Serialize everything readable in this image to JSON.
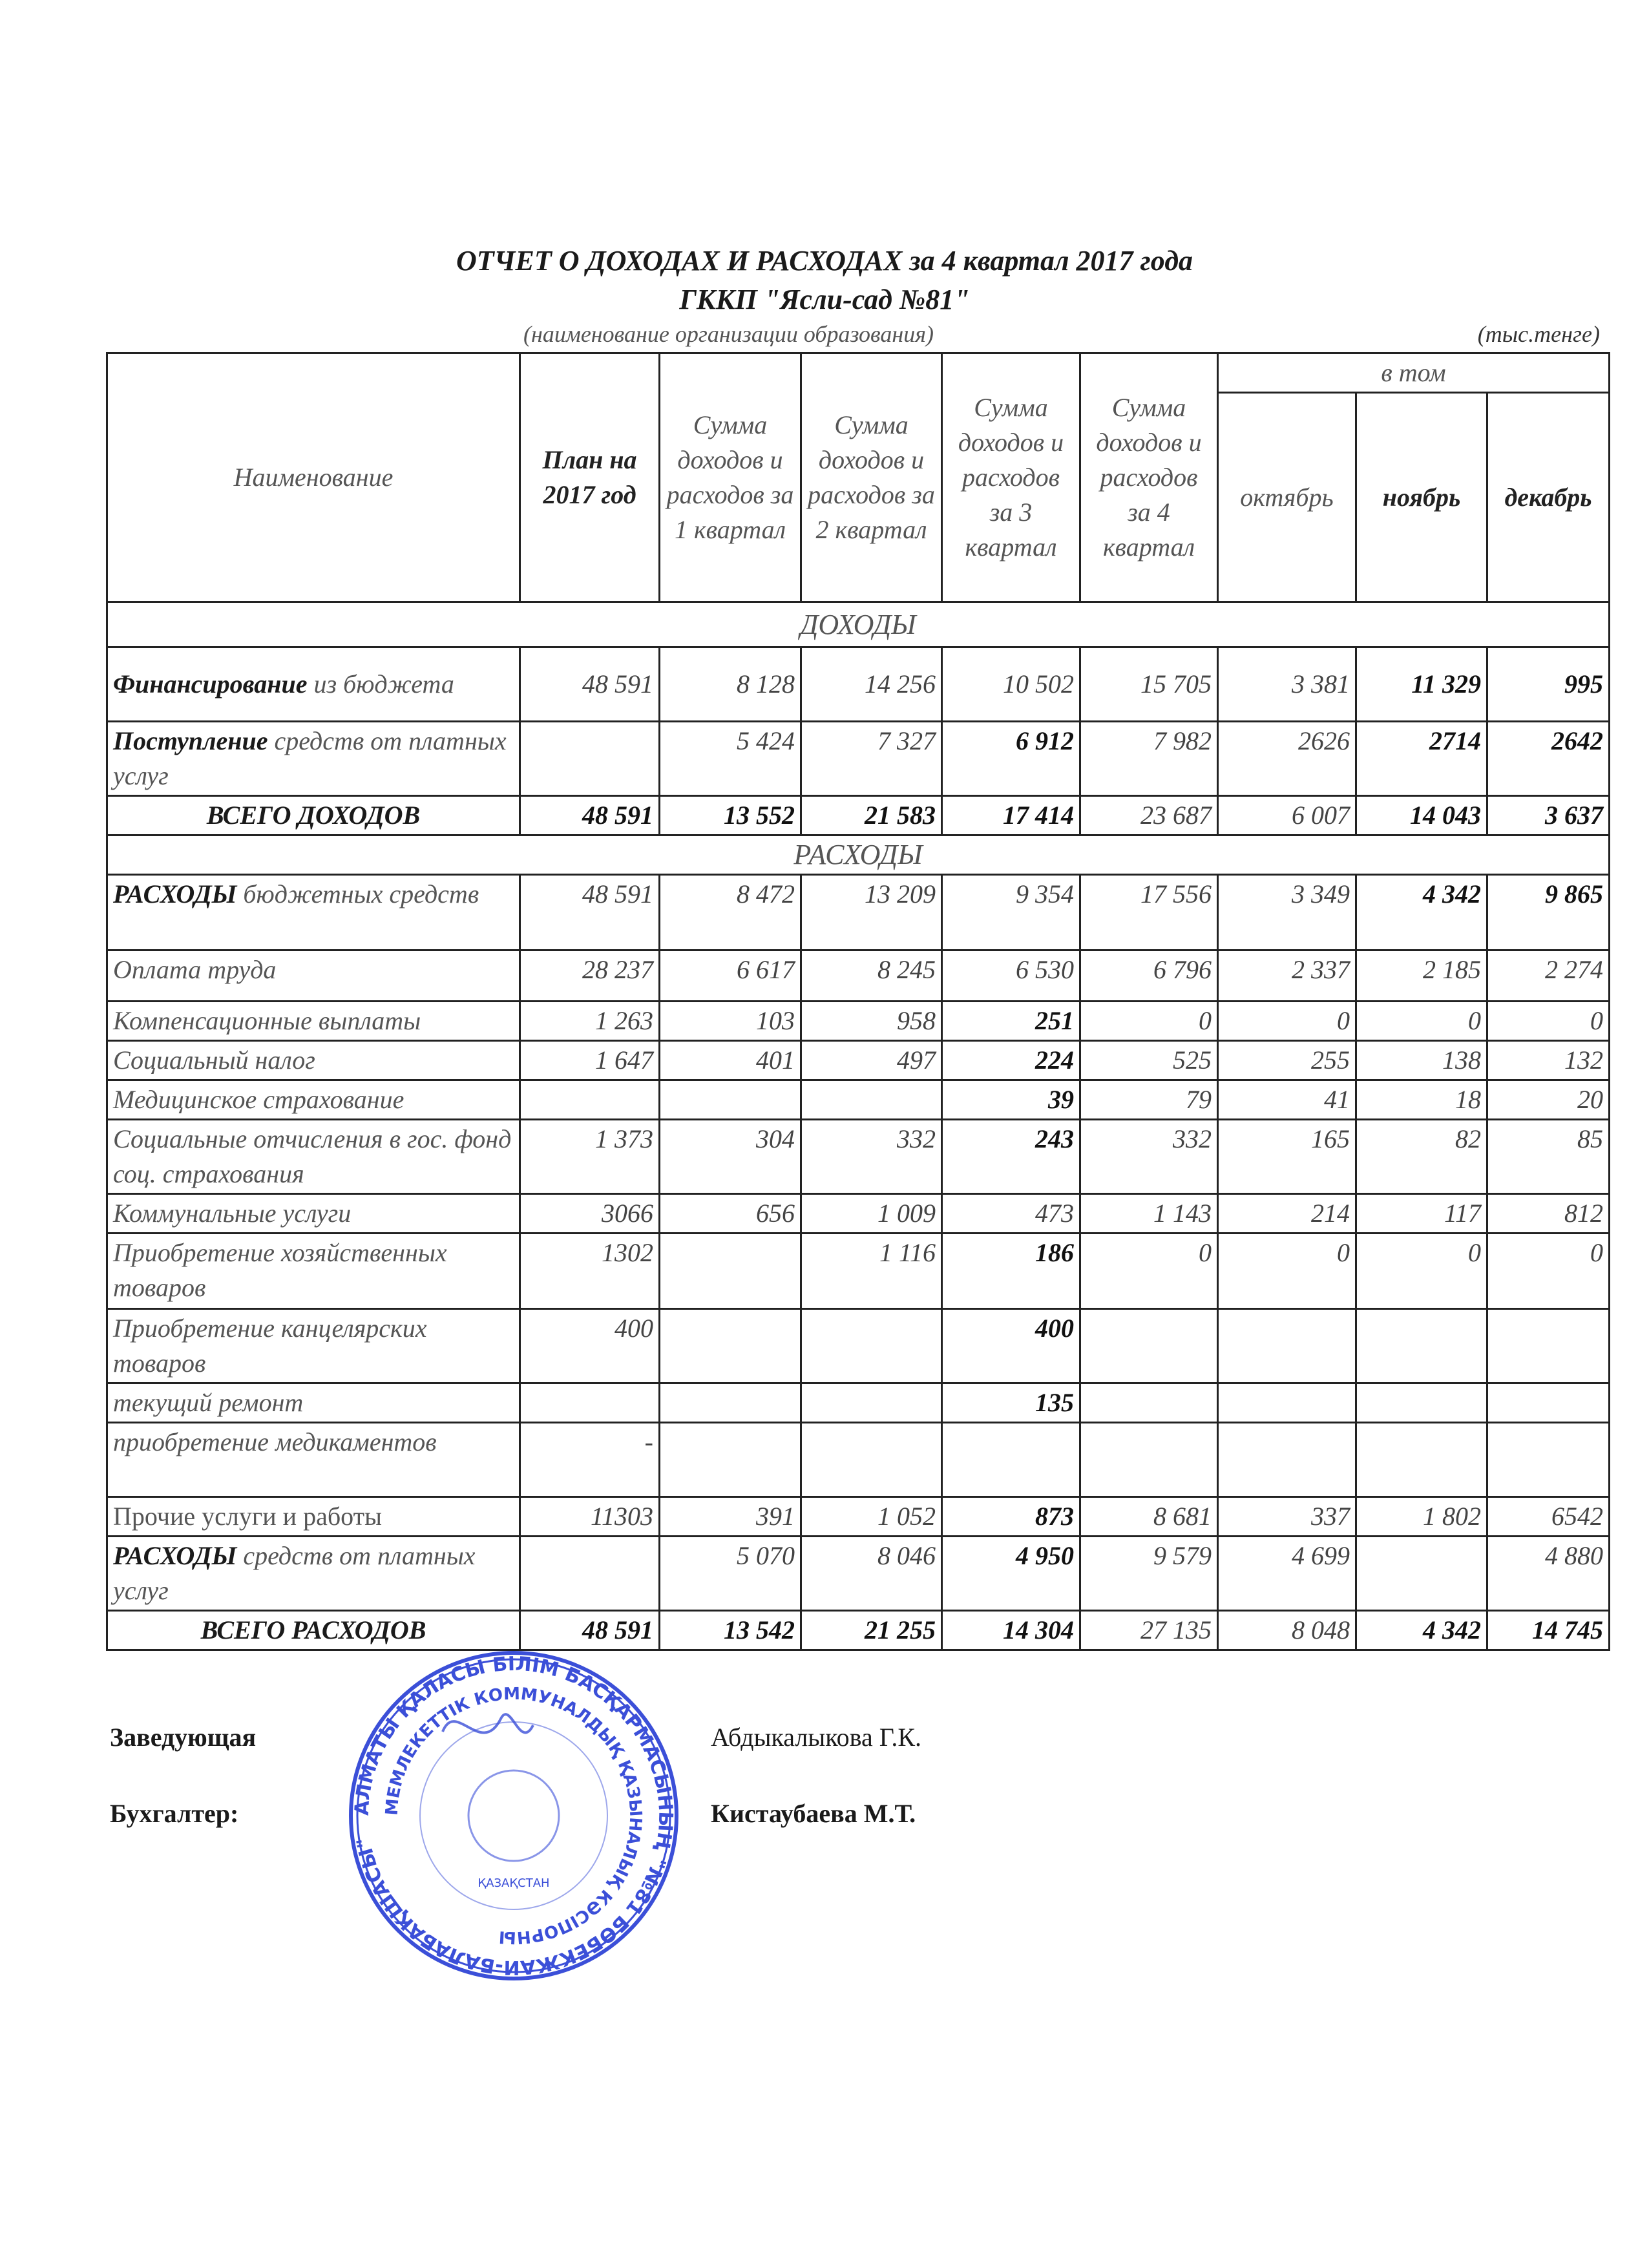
{
  "header": {
    "title": "ОТЧЕТ О ДОХОДАХ И РАСХОДАХ за 4 квартал 2017 года",
    "organization": "ГККП \"Ясли-сад №81\"",
    "org_caption": "(наименование организации образования)",
    "units": "(тыс.тенге)"
  },
  "table": {
    "columns": {
      "name": "Наименование",
      "plan": "План на 2017 год",
      "q1": "Сумма доходов и расходов за 1 квартал",
      "q2": "Сумма доходов и расходов за 2 квартал",
      "q3": "Сумма доходов и расходов за 3 квартал",
      "q4": "Сумма доходов и расходов за 4 квартал",
      "group": "в том",
      "oct": "октябрь",
      "nov": "ноябрь",
      "dec": "декабрь"
    },
    "rows": [
      {
        "type": "section",
        "label": "ДОХОДЫ"
      },
      {
        "bold": "Финансирование",
        "rest": " из бюджета",
        "values": [
          "48 591",
          "8 128",
          "14 256",
          "10 502",
          "15 705",
          "3 381",
          "11 329",
          "995"
        ],
        "boldcols": [
          6,
          7
        ],
        "mid": true
      },
      {
        "bold": "Поступление",
        "rest": " средств от платных услуг",
        "values": [
          "",
          "5 424",
          "7 327",
          "6 912",
          "7 982",
          "2626",
          "2714",
          "2642"
        ],
        "boldcols": [
          3,
          6,
          7
        ]
      },
      {
        "type": "total",
        "label": "ВСЕГО ДОХОДОВ",
        "values": [
          "48 591",
          "13 552",
          "21 583",
          "17 414",
          "23 687",
          "6 007",
          "14 043",
          "3 637"
        ],
        "boldcols": [
          0,
          1,
          2,
          3,
          6,
          7
        ]
      },
      {
        "type": "section",
        "label": "РАСХОДЫ"
      },
      {
        "bold": "РАСХОДЫ",
        "rest": " бюджетных средств",
        "values": [
          "48 591",
          "8 472",
          "13 209",
          "9 354",
          "17 556",
          "3 349",
          "4 342",
          "9 865"
        ],
        "boldcols": [
          6,
          7
        ]
      },
      {
        "bold": "",
        "rest": "Оплата труда",
        "values": [
          "28 237",
          "6 617",
          "8 245",
          "6 530",
          "6 796",
          "2 337",
          "2 185",
          "2 274"
        ],
        "boldcols": []
      },
      {
        "bold": "",
        "rest": "Компенсационные выплаты",
        "values": [
          "1 263",
          "103",
          "958",
          "251",
          "0",
          "0",
          "0",
          "0"
        ],
        "boldcols": [
          3
        ]
      },
      {
        "bold": "",
        "rest": "Социальный налог",
        "values": [
          "1 647",
          "401",
          "497",
          "224",
          "525",
          "255",
          "138",
          "132"
        ],
        "boldcols": [
          3
        ]
      },
      {
        "bold": "",
        "rest": "Медицинское страхование",
        "values": [
          "",
          "",
          "",
          "39",
          "79",
          "41",
          "18",
          "20"
        ],
        "boldcols": [
          3
        ]
      },
      {
        "bold": "",
        "rest": "Социальные отчисления в гос. фонд соц. страхования",
        "values": [
          "1 373",
          "304",
          "332",
          "243",
          "332",
          "165",
          "82",
          "85"
        ],
        "boldcols": [
          3
        ]
      },
      {
        "bold": "",
        "rest": "Коммунальные услуги",
        "values": [
          "3066",
          "656",
          "1 009",
          "473",
          "1 143",
          "214",
          "117",
          "812"
        ],
        "boldcols": []
      },
      {
        "bold": "",
        "rest": "Приобретение хозяйственных товаров",
        "values": [
          "1302",
          "",
          "1 116",
          "186",
          "0",
          "0",
          "0",
          "0"
        ],
        "boldcols": [
          3
        ]
      },
      {
        "bold": "",
        "rest": "Приобретение канцелярских товаров",
        "values": [
          "400",
          "",
          "",
          "400",
          "",
          "",
          "",
          ""
        ],
        "boldcols": [
          3
        ]
      },
      {
        "bold": "",
        "rest": "текущий ремонт",
        "values": [
          "",
          "",
          "",
          "135",
          "",
          "",
          "",
          ""
        ],
        "boldcols": [
          3
        ]
      },
      {
        "bold": "",
        "rest": "приобретение медикаментов",
        "values": [
          "-",
          "",
          "",
          "",
          "",
          "",
          "",
          ""
        ],
        "boldcols": [],
        "tall": true
      },
      {
        "bold": "",
        "rest": "Прочие услуги и работы",
        "values": [
          "11303",
          "391",
          "1 052",
          "873",
          "8 681",
          "337",
          "1 802",
          "6542"
        ],
        "boldcols": [
          3
        ],
        "upright": true
      },
      {
        "bold": "РАСХОДЫ",
        "rest": " средств от платных услуг",
        "values": [
          "",
          "5 070",
          "8 046",
          "4 950",
          "9 579",
          "4 699",
          "",
          "4 880"
        ],
        "boldcols": [
          3
        ]
      },
      {
        "type": "total",
        "label": "ВСЕГО РАСХОДОВ",
        "values": [
          "48 591",
          "13 542",
          "21 255",
          "14 304",
          "27 135",
          "8 048",
          "4 342",
          "14 745"
        ],
        "boldcols": [
          0,
          1,
          2,
          3,
          6,
          7
        ]
      }
    ]
  },
  "signatures": {
    "head_title": "Заведующая",
    "head_name": "Абдыкалыкова Г.К.",
    "accountant_title": "Бухгалтер:",
    "accountant_name": "Кистаубаева М.Т."
  },
  "stamp": {
    "color": "#3b4fd8",
    "outer_text": "АЛМАТЫ ҚАЛАСЫ БІЛІМ БАСҚАРМАСЫНЫҢ \"№81 БӨБЕКЖАЙ-БАЛАБАҚШАСЫ\"",
    "inner_text": "МЕМЛЕКЕТТІК КОММУНАЛДЫҚ ҚАЗЫНАЛЫҚ КӘСІПОРНЫ",
    "center_text": "ҚАЗАҚСТАН"
  }
}
